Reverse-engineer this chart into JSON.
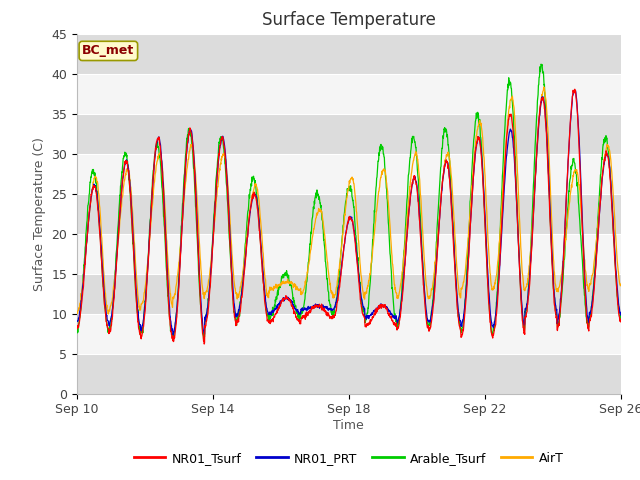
{
  "title": "Surface Temperature",
  "ylabel": "Surface Temperature (C)",
  "xlabel": "Time",
  "annotation": "BC_met",
  "ylim": [
    0,
    45
  ],
  "yticks": [
    0,
    5,
    10,
    15,
    20,
    25,
    30,
    35,
    40,
    45
  ],
  "xtick_labels": [
    "Sep 10",
    "Sep 14",
    "Sep 18",
    "Sep 22",
    "Sep 26"
  ],
  "xtick_positions": [
    0,
    4,
    8,
    12,
    16
  ],
  "series_colors": {
    "NR01_Tsurf": "#ff0000",
    "NR01_PRT": "#0000cc",
    "Arable_Tsurf": "#00cc00",
    "AirT": "#ffaa00"
  },
  "series_names": [
    "NR01_Tsurf",
    "NR01_PRT",
    "Arable_Tsurf",
    "AirT"
  ],
  "background_color": "#ffffff",
  "plot_bg_color": "#ebebeb",
  "band_light": "#f5f5f5",
  "band_dark": "#dcdcdc",
  "title_fontsize": 12,
  "axis_label_fontsize": 9,
  "tick_fontsize": 9,
  "legend_fontsize": 9,
  "annotation_fontsize": 9,
  "n_days": 17,
  "points_per_day": 96,
  "day_mins_red": [
    8.0,
    7.5,
    7.0,
    6.5,
    8.5,
    9.0,
    9.0,
    9.5,
    9.5,
    8.5,
    8.0,
    8.0,
    7.0,
    7.5,
    9.5,
    8.0,
    9.0
  ],
  "day_maxs_red": [
    26,
    29,
    32,
    33,
    32,
    25,
    12,
    11,
    22,
    11,
    27,
    29,
    32,
    35,
    37,
    38,
    30
  ],
  "day_mins_blue": [
    9.0,
    8.5,
    8.0,
    7.5,
    9.5,
    10.0,
    10.0,
    10.5,
    10.5,
    9.5,
    9.0,
    9.0,
    8.5,
    8.5,
    10.5,
    9.0,
    10.0
  ],
  "day_maxs_blue": [
    26,
    29,
    32,
    33,
    32,
    25,
    12,
    11,
    22,
    11,
    27,
    29,
    32,
    33,
    37,
    38,
    30
  ],
  "day_mins_green": [
    8.0,
    8.0,
    7.5,
    7.0,
    9.0,
    9.5,
    9.5,
    10.0,
    10.0,
    9.0,
    8.5,
    8.5,
    7.5,
    8.0,
    10.0,
    8.5,
    9.5
  ],
  "day_maxs_green": [
    28,
    30,
    31,
    33,
    32,
    27,
    15,
    25,
    26,
    31,
    32,
    33,
    35,
    39,
    41,
    29,
    32
  ],
  "day_mins_orange": [
    10.0,
    10.5,
    11.0,
    12.0,
    12.5,
    12.0,
    13.0,
    12.5,
    12.0,
    12.5,
    12.0,
    12.0,
    13.0,
    13.0,
    13.0,
    13.0,
    13.5
  ],
  "day_maxs_orange": [
    27,
    28,
    30,
    31,
    30,
    26,
    14,
    23,
    27,
    28,
    30,
    30,
    34,
    37,
    38,
    28,
    31
  ]
}
